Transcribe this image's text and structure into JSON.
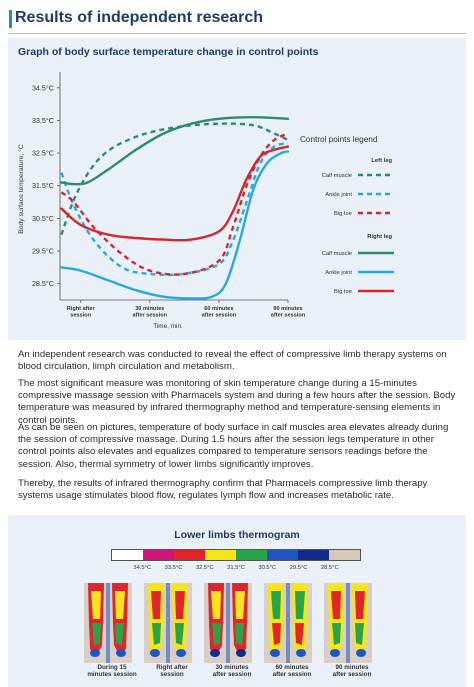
{
  "header": {
    "title": "Results of independent research"
  },
  "chart_data": {
    "type": "line",
    "title": "Graph of body surface temperature change in control points",
    "ylabel": "Body surface temperature, °C",
    "xlabel": "Time, min.",
    "yticks": [
      "34.5°C",
      "33.5°C",
      "32.5°C",
      "31.5°C",
      "30.5°C",
      "29.5°C",
      "28.5°C"
    ],
    "ylim": [
      28.0,
      34.8
    ],
    "x_ticks": [
      {
        "x": 0,
        "l1": "Right after",
        "l2": "session"
      },
      {
        "x": 1,
        "l1": "30 minutes",
        "l2": "after session"
      },
      {
        "x": 2,
        "l1": "60 minutes",
        "l2": "after session"
      },
      {
        "x": 3,
        "l1": "90 minutes",
        "l2": "after session"
      }
    ],
    "xlim": [
      -0.3,
      3.0
    ],
    "legend": {
      "title": "Control points legend",
      "left_leg": "Left leg",
      "right_leg": "Right leg",
      "position": "right"
    },
    "series": [
      {
        "name": "Calf muscle",
        "leg": "left",
        "color": "#2e8b72",
        "dashed": true,
        "points": [
          [
            -0.28,
            30.0
          ],
          [
            -0.05,
            31.3
          ],
          [
            0.3,
            32.4
          ],
          [
            0.8,
            33.0
          ],
          [
            1.4,
            33.3
          ],
          [
            2.0,
            33.4
          ],
          [
            2.5,
            33.35
          ],
          [
            2.8,
            33.1
          ],
          [
            3.0,
            32.9
          ]
        ]
      },
      {
        "name": "Ankle joint",
        "leg": "left",
        "color": "#29a8e0",
        "dashed": true,
        "points": [
          [
            -0.28,
            31.9
          ],
          [
            -0.1,
            30.9
          ],
          [
            0.2,
            29.8
          ],
          [
            0.6,
            29.0
          ],
          [
            1.0,
            28.8
          ],
          [
            1.5,
            28.8
          ],
          [
            2.0,
            29.1
          ],
          [
            2.2,
            29.8
          ],
          [
            2.4,
            31.0
          ],
          [
            2.6,
            32.2
          ],
          [
            2.8,
            32.7
          ],
          [
            3.0,
            32.8
          ]
        ]
      },
      {
        "name": "Big toe",
        "leg": "left",
        "color": "#d7262e",
        "dashed": true,
        "points": [
          [
            -0.28,
            31.3
          ],
          [
            -0.1,
            31.0
          ],
          [
            0.2,
            30.2
          ],
          [
            0.6,
            29.4
          ],
          [
            1.0,
            28.9
          ],
          [
            1.5,
            28.8
          ],
          [
            2.0,
            29.2
          ],
          [
            2.2,
            30.2
          ],
          [
            2.4,
            31.5
          ],
          [
            2.6,
            32.4
          ],
          [
            2.8,
            32.9
          ],
          [
            3.0,
            33.1
          ]
        ]
      },
      {
        "name": "Calf muscle",
        "leg": "right",
        "color": "#2e8b72",
        "dashed": false,
        "points": [
          [
            -0.28,
            31.6
          ],
          [
            -0.1,
            31.55
          ],
          [
            0.1,
            31.6
          ],
          [
            0.4,
            32.0
          ],
          [
            0.8,
            32.6
          ],
          [
            1.2,
            33.1
          ],
          [
            1.6,
            33.4
          ],
          [
            2.0,
            33.55
          ],
          [
            2.5,
            33.6
          ],
          [
            3.0,
            33.55
          ]
        ]
      },
      {
        "name": "Ankle joint",
        "leg": "right",
        "color": "#29a8e0",
        "dashed": false,
        "points": [
          [
            -0.28,
            29.0
          ],
          [
            0.0,
            28.9
          ],
          [
            0.4,
            28.6
          ],
          [
            0.8,
            28.3
          ],
          [
            1.2,
            28.1
          ],
          [
            1.6,
            28.05
          ],
          [
            1.9,
            28.1
          ],
          [
            2.1,
            28.5
          ],
          [
            2.3,
            29.8
          ],
          [
            2.5,
            31.4
          ],
          [
            2.7,
            32.2
          ],
          [
            2.9,
            32.5
          ],
          [
            3.0,
            32.55
          ]
        ]
      },
      {
        "name": "Big toe",
        "leg": "right",
        "color": "#d7262e",
        "dashed": false,
        "points": [
          [
            -0.28,
            30.8
          ],
          [
            0.0,
            30.3
          ],
          [
            0.4,
            30.0
          ],
          [
            0.8,
            29.9
          ],
          [
            1.2,
            29.85
          ],
          [
            1.6,
            29.85
          ],
          [
            2.0,
            30.1
          ],
          [
            2.2,
            30.7
          ],
          [
            2.4,
            31.7
          ],
          [
            2.6,
            32.4
          ],
          [
            2.8,
            32.6
          ],
          [
            3.0,
            32.7
          ]
        ]
      }
    ]
  },
  "paragraphs": [
    "An independent research was conducted to reveal the effect of compressive limb therapy systems on blood circulation, limph circulation and metabolism.",
    "The most significant measure was monitoring of skin temperature change during a 15-minutes compressive massage session with Pharmacels system and during a few hours after the session. Body temperature was measured by infrared thermography method and temperature-sensing elements in control points.",
    "As can be seen on pictures, temperature of body surface in calf muscles area elevates already during the session of compressive massage. During 1.5 hours after the session legs temperature in other control points also elevates and equalizes compared to temperature sensors readings before the session. Also, thermal symmetry of lower limbs significantly improves.",
    "Thereby, the results of infrared thermography confirm that Pharmacels compressive limb therapy systems usage stimulates blood flow, regulates lymph flow and increases metabolic rate."
  ],
  "thermogram": {
    "title": "Lower limbs thermogram",
    "scale_colors": [
      "#ffffff",
      "#d0157a",
      "#e0262a",
      "#f6e51a",
      "#2aa44a",
      "#2255c4",
      "#162a8a",
      "#d8c8b8"
    ],
    "scale_labels": [
      "34.5°C",
      "33.5°C",
      "32.5°C",
      "31.5°C",
      "30.5°C",
      "29.5°C",
      "28.5°C"
    ],
    "items": [
      {
        "l1": "During 15",
        "l2": "minutes session"
      },
      {
        "l1": "Right after",
        "l2": "session"
      },
      {
        "l1": "30 minutes",
        "l2": "after session"
      },
      {
        "l1": "60 minutes",
        "l2": "after session"
      },
      {
        "l1": "90 minutes",
        "l2": "after session"
      }
    ]
  }
}
